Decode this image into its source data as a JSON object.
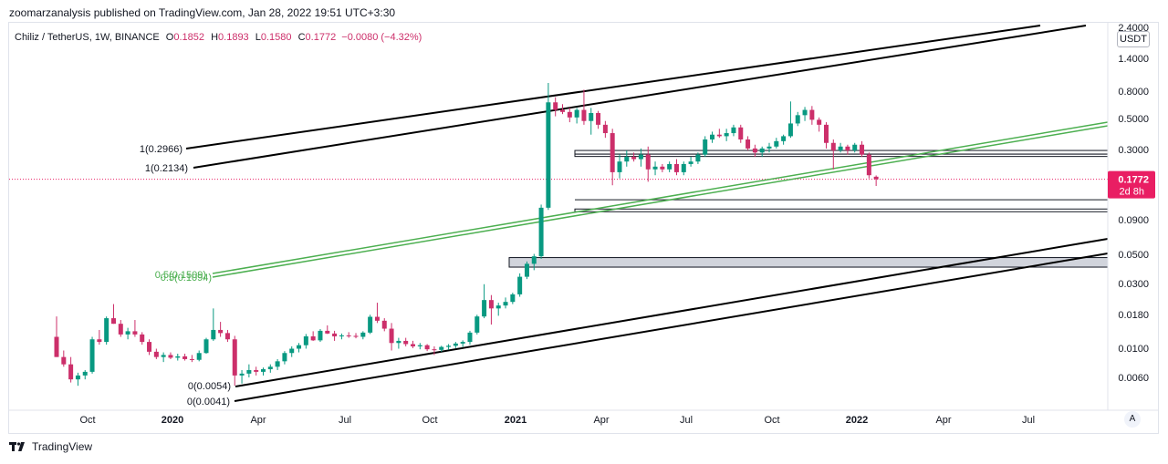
{
  "header": {
    "published": "zoomarzanalysis published on TradingView.com, Jan 28, 2022 19:51 UTC+3:30"
  },
  "legend": {
    "symbol": "Chiliz / TetherUS, 1W, BINANCE",
    "o_label": "O",
    "o": "0.1852",
    "h_label": "H",
    "h": "0.1893",
    "l_label": "L",
    "l": "0.1580",
    "c_label": "C",
    "c": "0.1772",
    "change": "−0.0080 (−4.32%)"
  },
  "price_axis": {
    "currency": "USDT",
    "ticks": [
      "2.4000",
      "1.4000",
      "0.8000",
      "0.5000",
      "0.3000",
      "0.1800",
      "0.0900",
      "0.0500",
      "0.0300",
      "0.0180",
      "0.0100",
      "0.0060"
    ],
    "last_price": "0.1772",
    "countdown": "2d 8h"
  },
  "time_axis": {
    "ticks": [
      {
        "label": "Oct",
        "bold": false
      },
      {
        "label": "2020",
        "bold": true
      },
      {
        "label": "Apr",
        "bold": false
      },
      {
        "label": "Jul",
        "bold": false
      },
      {
        "label": "Oct",
        "bold": false
      },
      {
        "label": "2021",
        "bold": true
      },
      {
        "label": "Apr",
        "bold": false
      },
      {
        "label": "Jul",
        "bold": false
      },
      {
        "label": "Oct",
        "bold": false
      },
      {
        "label": "2022",
        "bold": true
      },
      {
        "label": "Apr",
        "bold": false
      },
      {
        "label": "Jul",
        "bold": false
      }
    ]
  },
  "annotations": {
    "fib_top_1": "1(0.2966)",
    "fib_top_2": "1(0.2134)",
    "fib_bottom_1": "0(0.0054)",
    "fib_bottom_2": "0(0.0041)",
    "green_label_1": "0.5(0.1509)",
    "green_label_2": "0.5(0.1094)"
  },
  "footer": {
    "brand": "TradingView",
    "auto_label": "A"
  },
  "colors": {
    "up": "#089981",
    "down": "#f23645",
    "down_body": "#cc2f6a",
    "trend": "#000000",
    "green_channel": "#4caf50",
    "price_label_bg": "#e91e63",
    "zone_fill": "#d1d4dc",
    "legend_text": "#131722",
    "legend_value": "#cc2f6a"
  },
  "chart_data": {
    "type": "candlestick",
    "title": "Chiliz / TetherUS, 1W, BINANCE",
    "scale": "log",
    "ylim": [
      0.0045,
      2.4
    ],
    "xlabel": "",
    "ylabel": "",
    "candles": [
      {
        "o": 0.012,
        "h": 0.017,
        "l": 0.0085,
        "c": 0.0085
      },
      {
        "o": 0.0085,
        "h": 0.0095,
        "l": 0.0072,
        "c": 0.0075
      },
      {
        "o": 0.0075,
        "h": 0.0085,
        "l": 0.0055,
        "c": 0.0058
      },
      {
        "o": 0.0058,
        "h": 0.0065,
        "l": 0.0052,
        "c": 0.0062
      },
      {
        "o": 0.0062,
        "h": 0.0068,
        "l": 0.0058,
        "c": 0.0066
      },
      {
        "o": 0.0066,
        "h": 0.012,
        "l": 0.0064,
        "c": 0.0115
      },
      {
        "o": 0.0115,
        "h": 0.0135,
        "l": 0.0105,
        "c": 0.011
      },
      {
        "o": 0.011,
        "h": 0.017,
        "l": 0.0105,
        "c": 0.0165
      },
      {
        "o": 0.0165,
        "h": 0.021,
        "l": 0.015,
        "c": 0.015
      },
      {
        "o": 0.015,
        "h": 0.016,
        "l": 0.012,
        "c": 0.0125
      },
      {
        "o": 0.0125,
        "h": 0.014,
        "l": 0.0115,
        "c": 0.0132
      },
      {
        "o": 0.0132,
        "h": 0.016,
        "l": 0.012,
        "c": 0.0125
      },
      {
        "o": 0.0125,
        "h": 0.013,
        "l": 0.0105,
        "c": 0.011
      },
      {
        "o": 0.011,
        "h": 0.0115,
        "l": 0.0088,
        "c": 0.0093
      },
      {
        "o": 0.0093,
        "h": 0.0098,
        "l": 0.0082,
        "c": 0.0085
      },
      {
        "o": 0.0085,
        "h": 0.0092,
        "l": 0.0078,
        "c": 0.0088
      },
      {
        "o": 0.0088,
        "h": 0.0092,
        "l": 0.0082,
        "c": 0.0084
      },
      {
        "o": 0.0084,
        "h": 0.009,
        "l": 0.008,
        "c": 0.0086
      },
      {
        "o": 0.0086,
        "h": 0.009,
        "l": 0.008,
        "c": 0.0082
      },
      {
        "o": 0.0082,
        "h": 0.0088,
        "l": 0.0078,
        "c": 0.0081
      },
      {
        "o": 0.0081,
        "h": 0.0095,
        "l": 0.0079,
        "c": 0.0091
      },
      {
        "o": 0.0091,
        "h": 0.0118,
        "l": 0.009,
        "c": 0.0115
      },
      {
        "o": 0.0115,
        "h": 0.0195,
        "l": 0.0112,
        "c": 0.0135
      },
      {
        "o": 0.0135,
        "h": 0.0155,
        "l": 0.012,
        "c": 0.0128
      },
      {
        "o": 0.0128,
        "h": 0.0135,
        "l": 0.011,
        "c": 0.0115
      },
      {
        "o": 0.0115,
        "h": 0.0122,
        "l": 0.0052,
        "c": 0.0062
      },
      {
        "o": 0.0062,
        "h": 0.0068,
        "l": 0.0054,
        "c": 0.0064
      },
      {
        "o": 0.0064,
        "h": 0.0075,
        "l": 0.006,
        "c": 0.0068
      },
      {
        "o": 0.0068,
        "h": 0.0072,
        "l": 0.0062,
        "c": 0.0066
      },
      {
        "o": 0.0066,
        "h": 0.0071,
        "l": 0.0062,
        "c": 0.0069
      },
      {
        "o": 0.0069,
        "h": 0.0075,
        "l": 0.0065,
        "c": 0.0072
      },
      {
        "o": 0.0072,
        "h": 0.0082,
        "l": 0.0068,
        "c": 0.0079
      },
      {
        "o": 0.0079,
        "h": 0.0094,
        "l": 0.0075,
        "c": 0.0091
      },
      {
        "o": 0.0091,
        "h": 0.0102,
        "l": 0.0085,
        "c": 0.0098
      },
      {
        "o": 0.0098,
        "h": 0.0108,
        "l": 0.0092,
        "c": 0.0104
      },
      {
        "o": 0.0104,
        "h": 0.0126,
        "l": 0.0098,
        "c": 0.0121
      },
      {
        "o": 0.0121,
        "h": 0.0132,
        "l": 0.0112,
        "c": 0.0113
      },
      {
        "o": 0.0113,
        "h": 0.0137,
        "l": 0.011,
        "c": 0.0133
      },
      {
        "o": 0.0133,
        "h": 0.0146,
        "l": 0.0126,
        "c": 0.0127
      },
      {
        "o": 0.0127,
        "h": 0.0133,
        "l": 0.0112,
        "c": 0.0121
      },
      {
        "o": 0.0121,
        "h": 0.0127,
        "l": 0.0115,
        "c": 0.0123
      },
      {
        "o": 0.0123,
        "h": 0.013,
        "l": 0.0118,
        "c": 0.0122
      },
      {
        "o": 0.0122,
        "h": 0.0128,
        "l": 0.0117,
        "c": 0.012
      },
      {
        "o": 0.012,
        "h": 0.0132,
        "l": 0.0115,
        "c": 0.0129
      },
      {
        "o": 0.0129,
        "h": 0.0175,
        "l": 0.0126,
        "c": 0.0169
      },
      {
        "o": 0.0169,
        "h": 0.0215,
        "l": 0.0152,
        "c": 0.0158
      },
      {
        "o": 0.0158,
        "h": 0.0165,
        "l": 0.0132,
        "c": 0.0138
      },
      {
        "o": 0.0138,
        "h": 0.0152,
        "l": 0.0095,
        "c": 0.0108
      },
      {
        "o": 0.0108,
        "h": 0.0118,
        "l": 0.0098,
        "c": 0.0112
      },
      {
        "o": 0.0112,
        "h": 0.0118,
        "l": 0.0102,
        "c": 0.0106
      },
      {
        "o": 0.0106,
        "h": 0.0112,
        "l": 0.0099,
        "c": 0.0102
      },
      {
        "o": 0.0102,
        "h": 0.0108,
        "l": 0.0097,
        "c": 0.0104
      },
      {
        "o": 0.0104,
        "h": 0.0106,
        "l": 0.0094,
        "c": 0.0097
      },
      {
        "o": 0.0097,
        "h": 0.0102,
        "l": 0.0088,
        "c": 0.0096
      },
      {
        "o": 0.0096,
        "h": 0.0103,
        "l": 0.0093,
        "c": 0.0101
      },
      {
        "o": 0.0101,
        "h": 0.0106,
        "l": 0.0096,
        "c": 0.0103
      },
      {
        "o": 0.0103,
        "h": 0.011,
        "l": 0.0099,
        "c": 0.0107
      },
      {
        "o": 0.0107,
        "h": 0.0113,
        "l": 0.0101,
        "c": 0.011
      },
      {
        "o": 0.011,
        "h": 0.0133,
        "l": 0.0105,
        "c": 0.0129
      },
      {
        "o": 0.0129,
        "h": 0.0175,
        "l": 0.0125,
        "c": 0.017
      },
      {
        "o": 0.017,
        "h": 0.0295,
        "l": 0.0165,
        "c": 0.0225
      },
      {
        "o": 0.0225,
        "h": 0.0245,
        "l": 0.0148,
        "c": 0.0195
      },
      {
        "o": 0.0195,
        "h": 0.0215,
        "l": 0.0172,
        "c": 0.0205
      },
      {
        "o": 0.0205,
        "h": 0.0235,
        "l": 0.0195,
        "c": 0.0218
      },
      {
        "o": 0.0218,
        "h": 0.0255,
        "l": 0.021,
        "c": 0.0248
      },
      {
        "o": 0.0248,
        "h": 0.0355,
        "l": 0.0238,
        "c": 0.0335
      },
      {
        "o": 0.0335,
        "h": 0.0435,
        "l": 0.0322,
        "c": 0.0418
      },
      {
        "o": 0.0418,
        "h": 0.0495,
        "l": 0.0375,
        "c": 0.0475
      },
      {
        "o": 0.0475,
        "h": 0.115,
        "l": 0.0455,
        "c": 0.109
      },
      {
        "o": 0.109,
        "h": 0.92,
        "l": 0.105,
        "c": 0.66
      },
      {
        "o": 0.66,
        "h": 0.72,
        "l": 0.52,
        "c": 0.58
      },
      {
        "o": 0.58,
        "h": 0.64,
        "l": 0.54,
        "c": 0.56
      },
      {
        "o": 0.56,
        "h": 0.6,
        "l": 0.47,
        "c": 0.51
      },
      {
        "o": 0.51,
        "h": 0.6,
        "l": 0.46,
        "c": 0.58
      },
      {
        "o": 0.58,
        "h": 0.82,
        "l": 0.45,
        "c": 0.48
      },
      {
        "o": 0.48,
        "h": 0.6,
        "l": 0.38,
        "c": 0.55
      },
      {
        "o": 0.55,
        "h": 0.57,
        "l": 0.42,
        "c": 0.45
      },
      {
        "o": 0.45,
        "h": 0.48,
        "l": 0.36,
        "c": 0.39
      },
      {
        "o": 0.39,
        "h": 0.42,
        "l": 0.16,
        "c": 0.2
      },
      {
        "o": 0.2,
        "h": 0.27,
        "l": 0.18,
        "c": 0.24
      },
      {
        "o": 0.24,
        "h": 0.29,
        "l": 0.22,
        "c": 0.26
      },
      {
        "o": 0.26,
        "h": 0.28,
        "l": 0.24,
        "c": 0.25
      },
      {
        "o": 0.25,
        "h": 0.3,
        "l": 0.22,
        "c": 0.27
      },
      {
        "o": 0.27,
        "h": 0.31,
        "l": 0.17,
        "c": 0.21
      },
      {
        "o": 0.21,
        "h": 0.24,
        "l": 0.19,
        "c": 0.22
      },
      {
        "o": 0.22,
        "h": 0.23,
        "l": 0.2,
        "c": 0.21
      },
      {
        "o": 0.21,
        "h": 0.24,
        "l": 0.2,
        "c": 0.23
      },
      {
        "o": 0.23,
        "h": 0.25,
        "l": 0.19,
        "c": 0.2
      },
      {
        "o": 0.2,
        "h": 0.24,
        "l": 0.19,
        "c": 0.23
      },
      {
        "o": 0.23,
        "h": 0.26,
        "l": 0.22,
        "c": 0.24
      },
      {
        "o": 0.24,
        "h": 0.28,
        "l": 0.23,
        "c": 0.27
      },
      {
        "o": 0.27,
        "h": 0.37,
        "l": 0.26,
        "c": 0.35
      },
      {
        "o": 0.35,
        "h": 0.4,
        "l": 0.33,
        "c": 0.38
      },
      {
        "o": 0.38,
        "h": 0.42,
        "l": 0.36,
        "c": 0.37
      },
      {
        "o": 0.37,
        "h": 0.42,
        "l": 0.34,
        "c": 0.39
      },
      {
        "o": 0.39,
        "h": 0.45,
        "l": 0.37,
        "c": 0.43
      },
      {
        "o": 0.43,
        "h": 0.45,
        "l": 0.33,
        "c": 0.35
      },
      {
        "o": 0.35,
        "h": 0.37,
        "l": 0.29,
        "c": 0.3
      },
      {
        "o": 0.3,
        "h": 0.32,
        "l": 0.26,
        "c": 0.28
      },
      {
        "o": 0.28,
        "h": 0.31,
        "l": 0.26,
        "c": 0.3
      },
      {
        "o": 0.3,
        "h": 0.33,
        "l": 0.28,
        "c": 0.31
      },
      {
        "o": 0.31,
        "h": 0.36,
        "l": 0.3,
        "c": 0.34
      },
      {
        "o": 0.34,
        "h": 0.38,
        "l": 0.32,
        "c": 0.37
      },
      {
        "o": 0.37,
        "h": 0.67,
        "l": 0.36,
        "c": 0.46
      },
      {
        "o": 0.46,
        "h": 0.56,
        "l": 0.44,
        "c": 0.53
      },
      {
        "o": 0.53,
        "h": 0.61,
        "l": 0.48,
        "c": 0.58
      },
      {
        "o": 0.58,
        "h": 0.62,
        "l": 0.45,
        "c": 0.49
      },
      {
        "o": 0.49,
        "h": 0.51,
        "l": 0.4,
        "c": 0.45
      },
      {
        "o": 0.45,
        "h": 0.47,
        "l": 0.3,
        "c": 0.33
      },
      {
        "o": 0.33,
        "h": 0.35,
        "l": 0.21,
        "c": 0.29
      },
      {
        "o": 0.29,
        "h": 0.33,
        "l": 0.28,
        "c": 0.31
      },
      {
        "o": 0.31,
        "h": 0.32,
        "l": 0.27,
        "c": 0.29
      },
      {
        "o": 0.29,
        "h": 0.33,
        "l": 0.28,
        "c": 0.32
      },
      {
        "o": 0.32,
        "h": 0.34,
        "l": 0.26,
        "c": 0.27
      },
      {
        "o": 0.27,
        "h": 0.28,
        "l": 0.18,
        "c": 0.19
      },
      {
        "o": 0.1852,
        "h": 0.1893,
        "l": 0.158,
        "c": 0.1772
      }
    ],
    "levels": [
      {
        "name": "resistance-band-1",
        "price": 0.29
      },
      {
        "name": "resistance-band-2",
        "price": 0.27
      },
      {
        "name": "support-line-1",
        "price": 0.125
      },
      {
        "name": "support-line-2",
        "price": 0.105
      },
      {
        "name": "demand-zone-top",
        "price": 0.0465
      },
      {
        "name": "demand-zone-bottom",
        "price": 0.0395
      }
    ],
    "last_price": 0.1772
  }
}
